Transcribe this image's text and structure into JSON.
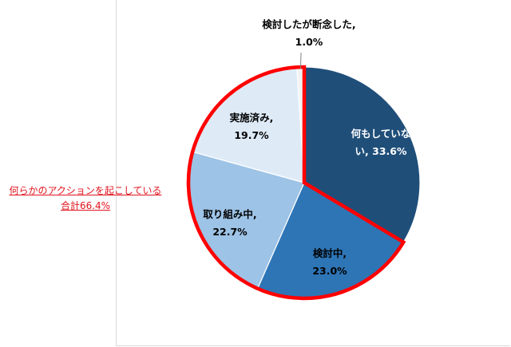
{
  "chart_data": {
    "type": "pie",
    "title": "",
    "slices": [
      {
        "label": "何もしていない",
        "value": 33.6,
        "label_lines": [
          "何もしていな",
          "い, 33.6%"
        ],
        "color": "#1f4e79",
        "text_color": "#ffffff"
      },
      {
        "label": "検討中",
        "value": 23.0,
        "label_lines": [
          "検討中,",
          "23.0%"
        ],
        "color": "#2e75b6",
        "text_color": "#000000"
      },
      {
        "label": "取り組み中",
        "value": 22.7,
        "label_lines": [
          "取り組み中,",
          "22.7%"
        ],
        "color": "#9dc3e6",
        "text_color": "#000000"
      },
      {
        "label": "実施済み",
        "value": 19.7,
        "label_lines": [
          "実施済み,",
          "19.7%"
        ],
        "color": "#deebf7",
        "text_color": "#000000"
      },
      {
        "label": "検討したが断念した",
        "value": 1.0,
        "label_lines": [
          "検討したが断念した,",
          "1.0%"
        ],
        "color": "#f2f2f2",
        "text_color": "#000000"
      }
    ],
    "highlight": {
      "slices": [
        "検討中",
        "取り組み中",
        "実施済み",
        "検討したが断念した"
      ],
      "total": 66.4,
      "color": "#ff0000"
    }
  },
  "callout": {
    "line1": "何らかのアクションを起こしている",
    "line2": "合計66.4%"
  }
}
